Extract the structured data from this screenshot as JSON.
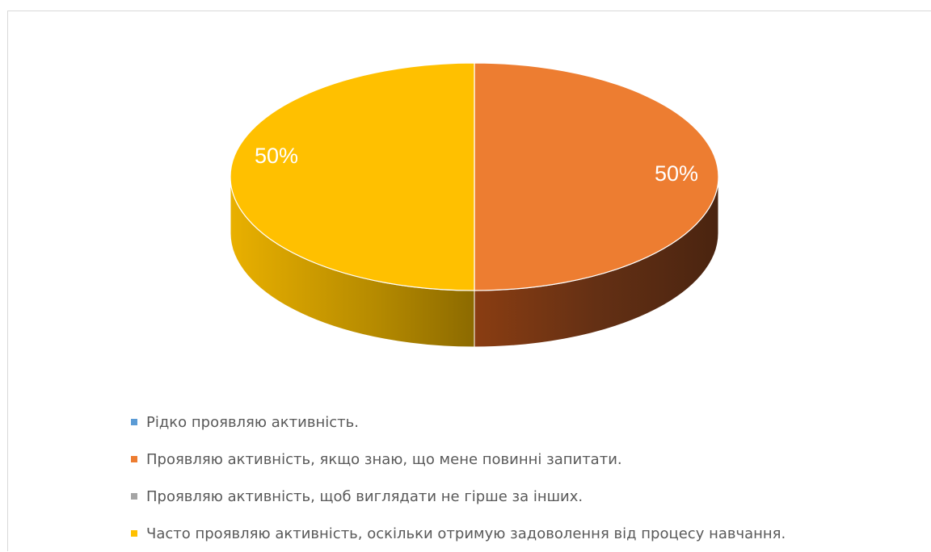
{
  "chart_data": {
    "type": "pie",
    "style": "3d",
    "categories": [
      "Рідко проявляю активність.",
      "Проявляю активність, якщо знаю, що мене повинні запитати.",
      "Проявляю активність, щоб виглядати не гірше за інших.",
      "Часто проявляю активність, оскільки отримую задоволення від процесу навчання."
    ],
    "values": [
      0,
      50,
      0,
      50
    ],
    "data_labels": [
      "",
      "50%",
      "",
      "50%"
    ],
    "colors": [
      "#5b9bd5",
      "#ed7d31",
      "#a5a5a5",
      "#ffc000"
    ],
    "legend_position": "bottom",
    "title": ""
  }
}
